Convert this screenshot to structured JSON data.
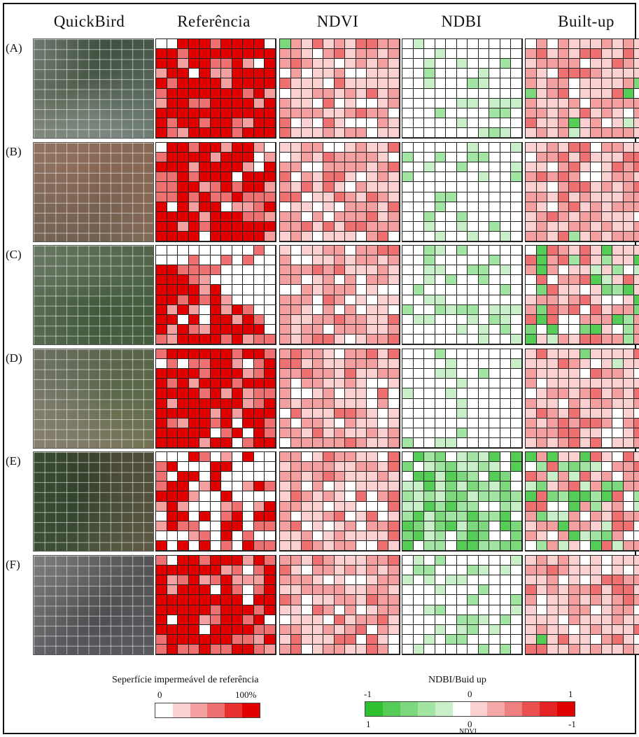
{
  "columns": [
    "QuickBird",
    "Referência",
    "NDVI",
    "NDBI",
    "Built-up"
  ],
  "rows": [
    "(A)",
    "(B)",
    "(C)",
    "(D)",
    "(E)",
    "(F)"
  ],
  "legend_left": {
    "title": "Seperfície impermeável de referência",
    "min_label": "0",
    "max_label": "100%",
    "colors": [
      "#ffffff",
      "#fbd0d0",
      "#f5a0a0",
      "#ef7070",
      "#e83030",
      "#e00000"
    ]
  },
  "legend_right": {
    "title": "NDBI/Buid up",
    "top_labels": [
      "-1",
      "0",
      "1"
    ],
    "bottom_labels": [
      "1",
      "0",
      "-1"
    ],
    "bottom_caption": "NDVI",
    "colors": [
      "#2fc02f",
      "#55cc55",
      "#7dd87d",
      "#a2e4a2",
      "#c8efc8",
      "#ffffff",
      "#fbd0d0",
      "#f6a8a8",
      "#f08080",
      "#ea5050",
      "#e42525",
      "#e00000"
    ]
  }
}
